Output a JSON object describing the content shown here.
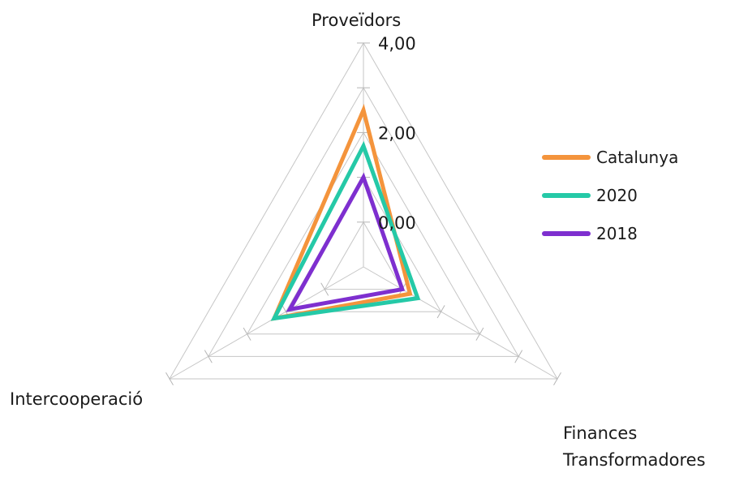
{
  "chart_data": {
    "type": "radar",
    "axes": [
      "Proveïdors",
      "Finances Transformadores",
      "Intercooperació"
    ],
    "axis_label_lines": {
      "top": [
        "Proveïdors"
      ],
      "bottom_right": [
        "Finances",
        "Transformadores"
      ],
      "bottom_left": [
        "Intercooperació"
      ]
    },
    "range": [
      -1,
      4
    ],
    "ticks": [
      "0,00",
      "2,00",
      "4,00"
    ],
    "tick_values": [
      0,
      2,
      4
    ],
    "grid_levels": [
      0,
      1,
      2,
      3,
      4
    ],
    "series": [
      {
        "name": "Catalunya",
        "color": "#f4943c",
        "values": [
          2.5,
          0.2,
          1.3
        ]
      },
      {
        "name": "2020",
        "color": "#25c9a7",
        "values": [
          1.7,
          0.4,
          1.3
        ]
      },
      {
        "name": "2018",
        "color": "#7e2fcf",
        "values": [
          1.0,
          0.0,
          0.9
        ]
      }
    ],
    "legend_position": "right"
  }
}
